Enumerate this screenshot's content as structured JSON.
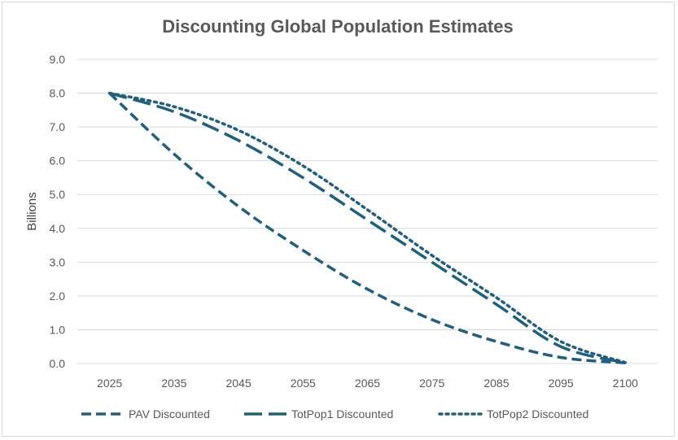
{
  "chart_data": {
    "type": "line",
    "title": "Discounting Global Population Estimates",
    "ylabel": "Billions",
    "xlabel": "",
    "ylim": [
      0,
      9
    ],
    "yticks": [
      "0.0",
      "1.0",
      "2.0",
      "3.0",
      "4.0",
      "5.0",
      "6.0",
      "7.0",
      "8.0",
      "9.0"
    ],
    "x_ticks": [
      "2025",
      "2035",
      "2045",
      "2055",
      "2065",
      "2075",
      "2085",
      "2095",
      "2100"
    ],
    "grid": true,
    "legend_position": "bottom",
    "series": [
      {
        "name": "PAV Discounted",
        "style": "dash",
        "color": "#1f5f7f",
        "points": [
          [
            2025,
            8.0
          ],
          [
            2035,
            6.2
          ],
          [
            2045,
            4.65
          ],
          [
            2055,
            3.35
          ],
          [
            2065,
            2.2
          ],
          [
            2075,
            1.3
          ],
          [
            2085,
            0.65
          ],
          [
            2095,
            0.18
          ],
          [
            2100,
            0.02
          ]
        ]
      },
      {
        "name": "TotPop1 Discounted",
        "style": "long-dash",
        "color": "#1f5f7f",
        "points": [
          [
            2025,
            8.0
          ],
          [
            2035,
            7.45
          ],
          [
            2045,
            6.6
          ],
          [
            2055,
            5.5
          ],
          [
            2065,
            4.25
          ],
          [
            2075,
            3.0
          ],
          [
            2085,
            1.75
          ],
          [
            2095,
            0.5
          ],
          [
            2100,
            0.02
          ]
        ]
      },
      {
        "name": "TotPop2 Discounted",
        "style": "dot",
        "color": "#1f5f7f",
        "points": [
          [
            2025,
            8.0
          ],
          [
            2035,
            7.6
          ],
          [
            2045,
            6.9
          ],
          [
            2055,
            5.85
          ],
          [
            2065,
            4.55
          ],
          [
            2075,
            3.2
          ],
          [
            2085,
            1.95
          ],
          [
            2095,
            0.65
          ],
          [
            2100,
            0.03
          ]
        ]
      }
    ]
  }
}
